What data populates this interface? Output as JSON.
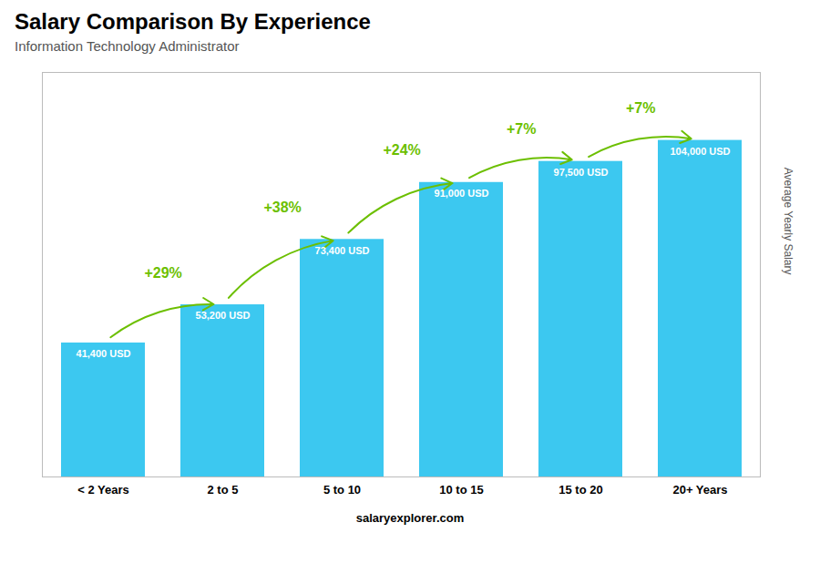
{
  "chart_data": {
    "type": "bar",
    "title": "Salary Comparison By Experience",
    "subtitle": "Information Technology Administrator",
    "ylabel": "Average Yearly Salary",
    "caption": "salaryexplorer.com",
    "categories": [
      "< 2 Years",
      "2 to 5",
      "5 to 10",
      "10 to 15",
      "15 to 20",
      "20+ Years"
    ],
    "values": [
      41400,
      53200,
      73400,
      91000,
      97500,
      104000
    ],
    "value_labels": [
      "41,400 USD",
      "53,200 USD",
      "73,400 USD",
      "91,000 USD",
      "97,500 USD",
      "104,000 USD"
    ],
    "data_labels": true,
    "color": "#3cc8f0",
    "ylim": [
      0,
      125000
    ],
    "tick_labels": "x",
    "grid": false,
    "annotations": [
      {
        "text": "+29%",
        "color": "#6cbf00"
      },
      {
        "text": "+38%",
        "color": "#6cbf00"
      },
      {
        "text": "+24%",
        "color": "#6cbf00"
      },
      {
        "text": "+7%",
        "color": "#6cbf00"
      },
      {
        "text": "+7%",
        "color": "#6cbf00"
      }
    ]
  }
}
